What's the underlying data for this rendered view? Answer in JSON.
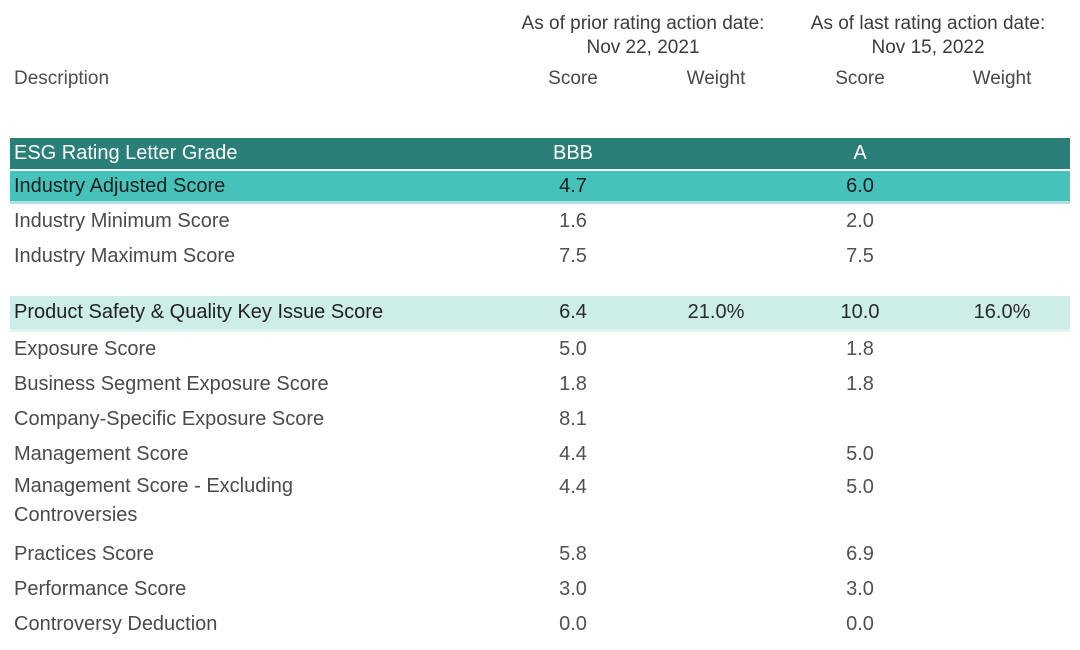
{
  "header": {
    "prior_period": {
      "caption": "As of prior rating action date:",
      "date": "Nov 22, 2021"
    },
    "last_period": {
      "caption": "As of last rating action date:",
      "date": "Nov 15, 2022"
    },
    "columns": {
      "description": "Description",
      "prior_score": "Score",
      "prior_weight": "Weight",
      "last_score": "Score",
      "last_weight": "Weight"
    }
  },
  "colors": {
    "grade_row_bg": "#2a7f78",
    "grade_row_text": "#ffffff",
    "adjusted_row_bg": "#45c3ba",
    "key_issue_row_bg": "#cdede8",
    "body_text": "#4a4a4a"
  },
  "table": {
    "rows": [
      {
        "label": "ESG Rating Letter Grade",
        "values": [
          "BBB",
          "",
          "A",
          ""
        ]
      },
      {
        "label": "Industry Adjusted Score",
        "values": [
          "4.7",
          "",
          "6.0",
          ""
        ]
      },
      {
        "label": "Industry Minimum Score",
        "values": [
          "1.6",
          "",
          "2.0",
          ""
        ]
      },
      {
        "label": "Industry Maximum Score",
        "values": [
          "7.5",
          "",
          "7.5",
          ""
        ]
      },
      {
        "label": "Product Safety & Quality Key Issue Score",
        "values": [
          "6.4",
          "21.0%",
          "10.0",
          "16.0%"
        ]
      },
      {
        "label": "Exposure Score",
        "values": [
          "5.0",
          "",
          "1.8",
          ""
        ]
      },
      {
        "label": "Business Segment Exposure Score",
        "values": [
          "1.8",
          "",
          "1.8",
          ""
        ]
      },
      {
        "label": "Company-Specific Exposure Score",
        "values": [
          "8.1",
          "",
          "",
          ""
        ]
      },
      {
        "label": "Management Score",
        "values": [
          "4.4",
          "",
          "5.0",
          ""
        ]
      },
      {
        "label": "Management Score - Excluding\nControversies",
        "values": [
          "4.4",
          "",
          "5.0",
          ""
        ]
      },
      {
        "label": "Practices Score",
        "values": [
          "5.8",
          "",
          "6.9",
          ""
        ]
      },
      {
        "label": "Performance Score",
        "values": [
          "3.0",
          "",
          "3.0",
          ""
        ]
      },
      {
        "label": "Controversy Deduction",
        "values": [
          "0.0",
          "",
          "0.0",
          ""
        ]
      }
    ]
  }
}
